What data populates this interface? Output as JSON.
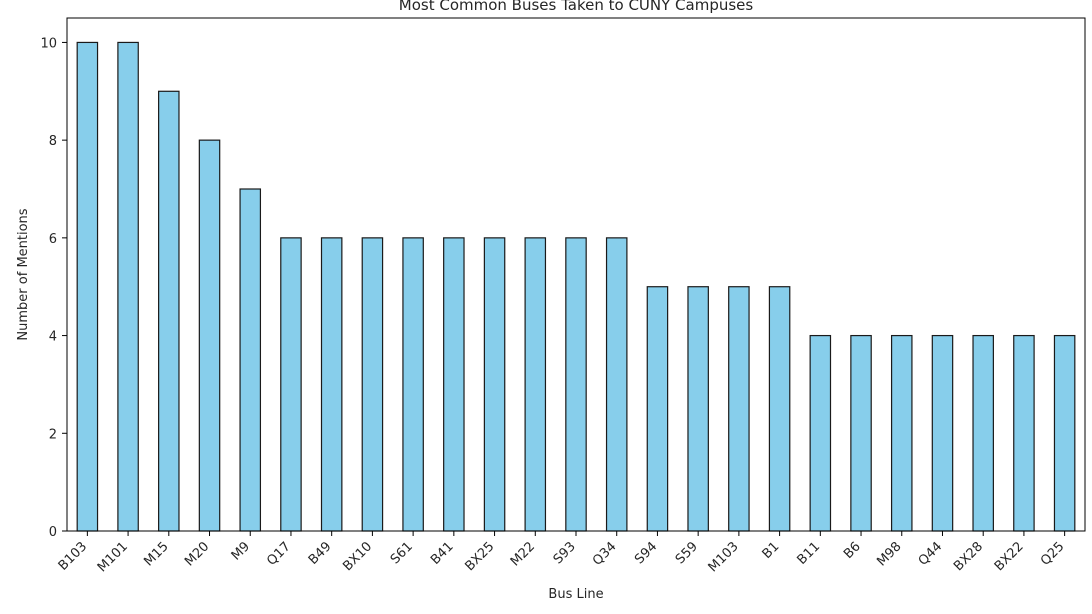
{
  "chart_data": {
    "type": "bar",
    "title": "Most Common Buses Taken to CUNY Campuses",
    "xlabel": "Bus Line",
    "ylabel": "Number of Mentions",
    "categories": [
      "B103",
      "M101",
      "M15",
      "M20",
      "M9",
      "Q17",
      "B49",
      "BX10",
      "S61",
      "B41",
      "BX25",
      "M22",
      "S93",
      "Q34",
      "S94",
      "S59",
      "M103",
      "B1",
      "B11",
      "B6",
      "M98",
      "Q44",
      "BX28",
      "BX22",
      "Q25"
    ],
    "values": [
      10,
      10,
      9,
      8,
      7,
      6,
      6,
      6,
      6,
      6,
      6,
      6,
      6,
      6,
      5,
      5,
      5,
      5,
      4,
      4,
      4,
      4,
      4,
      4,
      4
    ],
    "yticks": [
      0,
      2,
      4,
      6,
      8,
      10
    ],
    "ylim": [
      0,
      10.5
    ],
    "grid": false,
    "colors": {
      "bar_fill": "#87ceeb",
      "bar_edge": "#1a1a1a",
      "axis": "#000000"
    }
  }
}
